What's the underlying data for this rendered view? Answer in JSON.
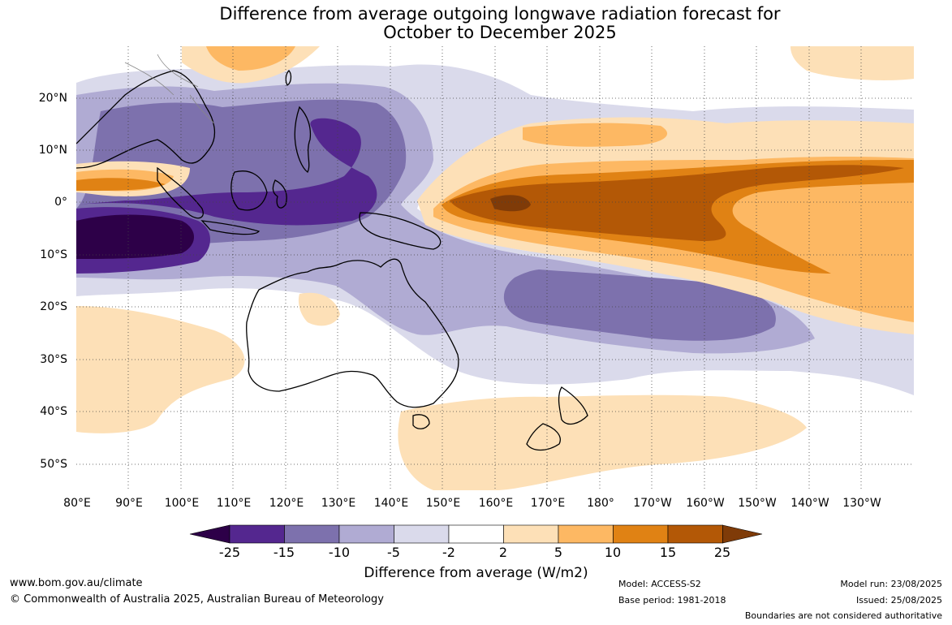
{
  "title": {
    "line1": "Difference from average outgoing longwave radiation forecast for",
    "line2": "October to December 2025"
  },
  "map": {
    "lat_labels": [
      "20°N",
      "10°N",
      "0°",
      "10°S",
      "20°S",
      "30°S",
      "40°S",
      "50°S"
    ],
    "lon_labels": [
      "80°E",
      "90°E",
      "100°E",
      "110°E",
      "120°E",
      "130°E",
      "140°E",
      "150°E",
      "160°E",
      "170°E",
      "180°",
      "170°W",
      "160°W",
      "150°W",
      "140°W",
      "130°W"
    ],
    "colors": {
      "minus25_below": "#2d0048",
      "minus25_minus15": "#54278f",
      "minus15_minus10": "#7d71ad",
      "minus10_minus5": "#b0abd3",
      "minus5_minus2": "#dadaeb",
      "minus2_2": "#ffffff",
      "p2_5": "#fde0b7",
      "p5_10": "#fdb863",
      "p10_15": "#e08214",
      "p15_25": "#b35806",
      "p25_above": "#7f3b08"
    }
  },
  "colorbar": {
    "ticks": [
      "-25",
      "-15",
      "-10",
      "-5",
      "-2",
      "2",
      "5",
      "10",
      "15",
      "25"
    ],
    "title": "Difference from average (W/m2)"
  },
  "footer": {
    "url": "www.bom.gov.au/climate",
    "copyright": "© Commonwealth of Australia 2025, Australian Bureau of Meteorology",
    "model": "Model: ACCESS-S2",
    "base_period": "Base period: 1981-2018",
    "model_run": "Model run: 23/08/2025",
    "issued": "Issued: 25/08/2025",
    "boundaries": "Boundaries are not considered authoritative"
  }
}
